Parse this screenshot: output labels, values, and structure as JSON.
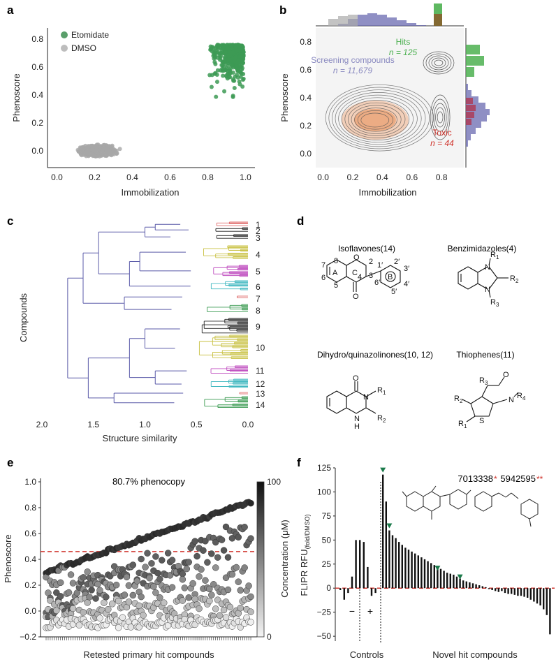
{
  "panels": {
    "a": {
      "label": "a"
    },
    "b": {
      "label": "b"
    },
    "c": {
      "label": "c"
    },
    "d": {
      "label": "d"
    },
    "e": {
      "label": "e"
    },
    "f": {
      "label": "f"
    }
  },
  "colors": {
    "etomidate": "#3d9a55",
    "dmso": "#a8a8a8",
    "purple": "#6a6ab0",
    "green_hits": "#4cb050",
    "red": "#d0342c",
    "dendro": [
      "#e06a6a",
      "#222222",
      "#c8c040",
      "#c050c0",
      "#40b8c0",
      "#3a9a50",
      "#5a5aa8"
    ]
  },
  "chart_data": [
    {
      "id": "a",
      "type": "scatter",
      "xlabel": "Immobilization",
      "ylabel": "Phenoscore",
      "xticks": [
        "0.0",
        "0.2",
        "0.4",
        "0.6",
        "0.8",
        "1.0"
      ],
      "yticks": [
        "0.0",
        "0.2",
        "0.4",
        "0.6",
        "0.8"
      ],
      "xlim": [
        -0.05,
        1.05
      ],
      "ylim": [
        -0.12,
        0.88
      ],
      "series": [
        {
          "name": "Etomidate",
          "cluster": {
            "x_center": 0.88,
            "y_center": 0.7,
            "x_spread": 0.09,
            "y_spread": 0.12
          },
          "n": 420
        },
        {
          "name": "DMSO",
          "cluster": {
            "x_center": 0.22,
            "y_center": 0.0,
            "x_spread": 0.12,
            "y_spread": 0.05
          },
          "n": 900
        }
      ]
    },
    {
      "id": "b",
      "type": "contour",
      "xlabel": "Immobilization",
      "ylabel": "Phenoscore",
      "xticks": [
        "0.0",
        "0.2",
        "0.4",
        "0.6",
        "0.8"
      ],
      "yticks": [
        "0.0",
        "0.2",
        "0.4",
        "0.6",
        "0.8"
      ],
      "xlim": [
        -0.05,
        0.95
      ],
      "ylim": [
        -0.1,
        0.9
      ],
      "groups": [
        {
          "name": "Screening compounds",
          "count": "n = 11,679",
          "center": [
            0.35,
            0.24
          ]
        },
        {
          "name": "Hits",
          "count": "n = 125",
          "center": [
            0.78,
            0.65
          ]
        },
        {
          "name": "Toxic",
          "count": "n = 44",
          "center": [
            0.79,
            0.26
          ]
        }
      ]
    },
    {
      "id": "c",
      "type": "dendrogram",
      "xlabel": "Structure similarity",
      "ylabel": "Compounds",
      "xticks": [
        "2.0",
        "1.5",
        "1.0",
        "0.5",
        "0.0"
      ],
      "xlim": [
        2.0,
        0.0
      ],
      "clusters": [
        "1",
        "2",
        "3",
        "4",
        "5",
        "6",
        "7",
        "8",
        "9",
        "10",
        "11",
        "12",
        "13",
        "14"
      ]
    },
    {
      "id": "e",
      "type": "scatter",
      "title": "80.7% phenocopy",
      "xlabel": "Retested primary hit compounds",
      "ylabel": "Phenoscore",
      "colorbar_label": "Concentration (μM)",
      "colorbar_ticks": [
        "100",
        "0"
      ],
      "yticks": [
        "−0.2",
        "0.0",
        "0.2",
        "0.4",
        "0.6",
        "0.8",
        "1.0"
      ],
      "ylim": [
        -0.2,
        1.0
      ],
      "threshold": 0.46,
      "n_compounds": 100
    },
    {
      "id": "f",
      "type": "bar",
      "ylabel": "FLIPR RFU",
      "ylabel_sub": "(fold/DMSO)",
      "yticks": [
        "125",
        "100",
        "75",
        "50",
        "25",
        "0",
        "−25",
        "−50"
      ],
      "ylim": [
        -55,
        125
      ],
      "group_labels": [
        "Controls",
        "Novel hit compounds"
      ],
      "control_signs": [
        "−",
        "+"
      ],
      "compound_labels": [
        "7013338",
        "5942595"
      ],
      "stars": [
        "*",
        "**"
      ],
      "control_values": [
        -2,
        -12,
        -5,
        12,
        50,
        50,
        48,
        22,
        -8,
        -5
      ],
      "hit_values": [
        118,
        90,
        60,
        55,
        52,
        48,
        45,
        42,
        40,
        38,
        36,
        34,
        32,
        30,
        28,
        26,
        24,
        22,
        20,
        18,
        16,
        15,
        14,
        12,
        10,
        8,
        7,
        6,
        5,
        4,
        3,
        2,
        1,
        -1,
        -2,
        -3,
        -4,
        -3,
        -5,
        -6,
        -6,
        -7,
        -8,
        -8,
        -9,
        -10,
        -12,
        -14,
        -16,
        -18,
        -22,
        -28,
        -48
      ]
    }
  ],
  "text": {
    "a_legend": [
      "Etomidate",
      "DMSO"
    ],
    "d": {
      "isoflavones": "Isoflavones(14)",
      "benzimidazoles": "Benzimidazoles(4)",
      "quinazolinones": "Dihydro/quinazolinones(10, 12)",
      "thiophenes": "Thiophenes(11)"
    }
  }
}
